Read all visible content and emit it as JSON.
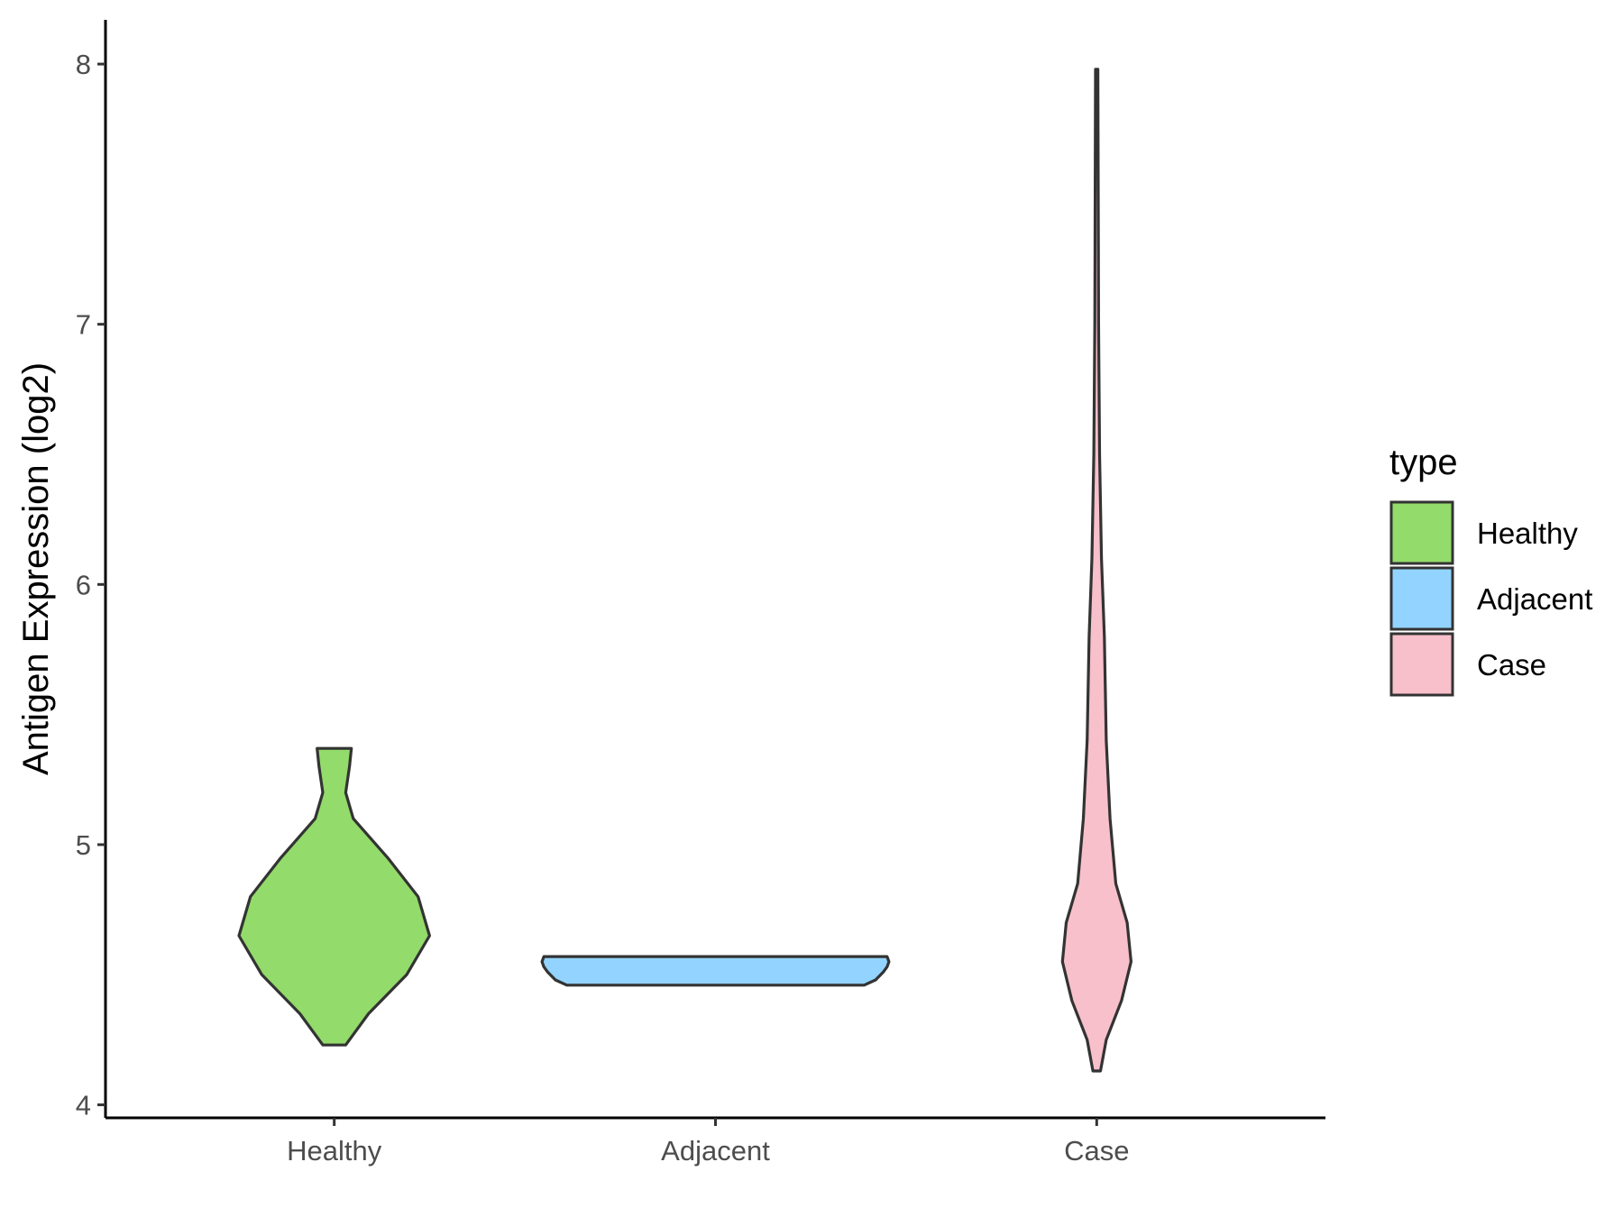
{
  "chart_data": {
    "type": "violin",
    "title": "",
    "xlabel": "",
    "ylabel": "Antigen Expression (log2)",
    "ylim": [
      3.95,
      8.17
    ],
    "yticks": [
      4,
      5,
      6,
      7,
      8
    ],
    "grid": false,
    "legend_position": "right",
    "legend_title": "type",
    "categories": [
      "Healthy",
      "Adjacent",
      "Case"
    ],
    "series": [
      {
        "name": "Healthy",
        "color": "#93DB6A",
        "min": 4.23,
        "max": 5.37,
        "profile": [
          [
            4.23,
            0.06
          ],
          [
            4.35,
            0.18
          ],
          [
            4.5,
            0.38
          ],
          [
            4.65,
            0.5
          ],
          [
            4.8,
            0.44
          ],
          [
            4.95,
            0.28
          ],
          [
            5.1,
            0.1
          ],
          [
            5.2,
            0.06
          ],
          [
            5.3,
            0.08
          ],
          [
            5.37,
            0.09
          ]
        ]
      },
      {
        "name": "Adjacent",
        "color": "#92D4FF",
        "min": 4.46,
        "max": 4.57,
        "profile": [
          [
            4.46,
            0.78
          ],
          [
            4.48,
            0.84
          ],
          [
            4.51,
            0.88
          ],
          [
            4.53,
            0.9
          ],
          [
            4.55,
            0.91
          ],
          [
            4.57,
            0.9
          ]
        ]
      },
      {
        "name": "Case",
        "color": "#F7C0CB",
        "min": 4.13,
        "max": 7.98,
        "profile": [
          [
            4.13,
            0.02
          ],
          [
            4.25,
            0.05
          ],
          [
            4.4,
            0.13
          ],
          [
            4.55,
            0.18
          ],
          [
            4.7,
            0.16
          ],
          [
            4.85,
            0.1
          ],
          [
            5.1,
            0.07
          ],
          [
            5.4,
            0.05
          ],
          [
            5.8,
            0.04
          ],
          [
            6.1,
            0.025
          ],
          [
            6.5,
            0.015
          ],
          [
            7.0,
            0.01
          ],
          [
            7.5,
            0.008
          ],
          [
            7.98,
            0.006
          ]
        ]
      }
    ]
  }
}
